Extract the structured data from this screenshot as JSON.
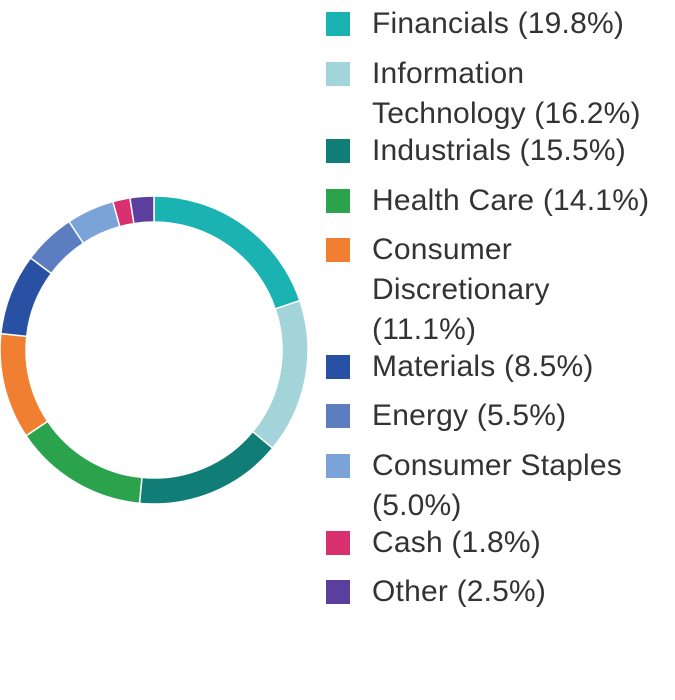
{
  "chart_data": {
    "type": "pie",
    "variant": "donut",
    "title": "",
    "legend_position": "right",
    "slices": [
      {
        "label": "Financials (19.8%)",
        "value": 19.8,
        "color": "#1BB3B2"
      },
      {
        "label": "Information Technology (16.2%)",
        "value": 16.2,
        "color": "#A2D4DA"
      },
      {
        "label": "Industrials (15.5%)",
        "value": 15.5,
        "color": "#107D77"
      },
      {
        "label": "Health Care (14.1%)",
        "value": 14.1,
        "color": "#2BA24C"
      },
      {
        "label": "Consumer Discretionary (11.1%)",
        "value": 11.1,
        "color": "#F07F32"
      },
      {
        "label": "Materials (8.5%)",
        "value": 8.5,
        "color": "#2851A4"
      },
      {
        "label": "Energy (5.5%)",
        "value": 5.5,
        "color": "#5C7EC1"
      },
      {
        "label": "Consumer Staples (5.0%)",
        "value": 5.0,
        "color": "#7BA3D8"
      },
      {
        "label": "Cash (1.8%)",
        "value": 1.8,
        "color": "#D9306F"
      },
      {
        "label": "Other (2.5%)",
        "value": 2.5,
        "color": "#5B3F9E"
      }
    ]
  }
}
